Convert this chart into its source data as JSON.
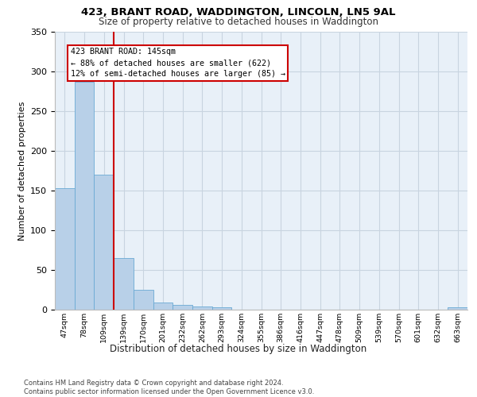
{
  "title1": "423, BRANT ROAD, WADDINGTON, LINCOLN, LN5 9AL",
  "title2": "Size of property relative to detached houses in Waddington",
  "xlabel": "Distribution of detached houses by size in Waddington",
  "ylabel": "Number of detached properties",
  "categories": [
    "47sqm",
    "78sqm",
    "109sqm",
    "139sqm",
    "170sqm",
    "201sqm",
    "232sqm",
    "262sqm",
    "293sqm",
    "324sqm",
    "355sqm",
    "386sqm",
    "416sqm",
    "447sqm",
    "478sqm",
    "509sqm",
    "539sqm",
    "570sqm",
    "601sqm",
    "632sqm",
    "663sqm"
  ],
  "values": [
    153,
    287,
    170,
    65,
    25,
    9,
    6,
    4,
    3,
    0,
    0,
    0,
    0,
    0,
    0,
    0,
    0,
    0,
    0,
    0,
    3
  ],
  "bar_color": "#b8d0e8",
  "bar_edge_color": "#6aaad4",
  "vline_color": "#cc0000",
  "annotation_text": "423 BRANT ROAD: 145sqm\n← 88% of detached houses are smaller (622)\n12% of semi-detached houses are larger (85) →",
  "annotation_box_color": "#cc0000",
  "ylim": [
    0,
    340
  ],
  "yticks": [
    0,
    50,
    100,
    150,
    200,
    250,
    300,
    350
  ],
  "grid_color": "#c8d4e0",
  "background_color": "#e8f0f8",
  "footer": "Contains HM Land Registry data © Crown copyright and database right 2024.\nContains public sector information licensed under the Open Government Licence v3.0."
}
